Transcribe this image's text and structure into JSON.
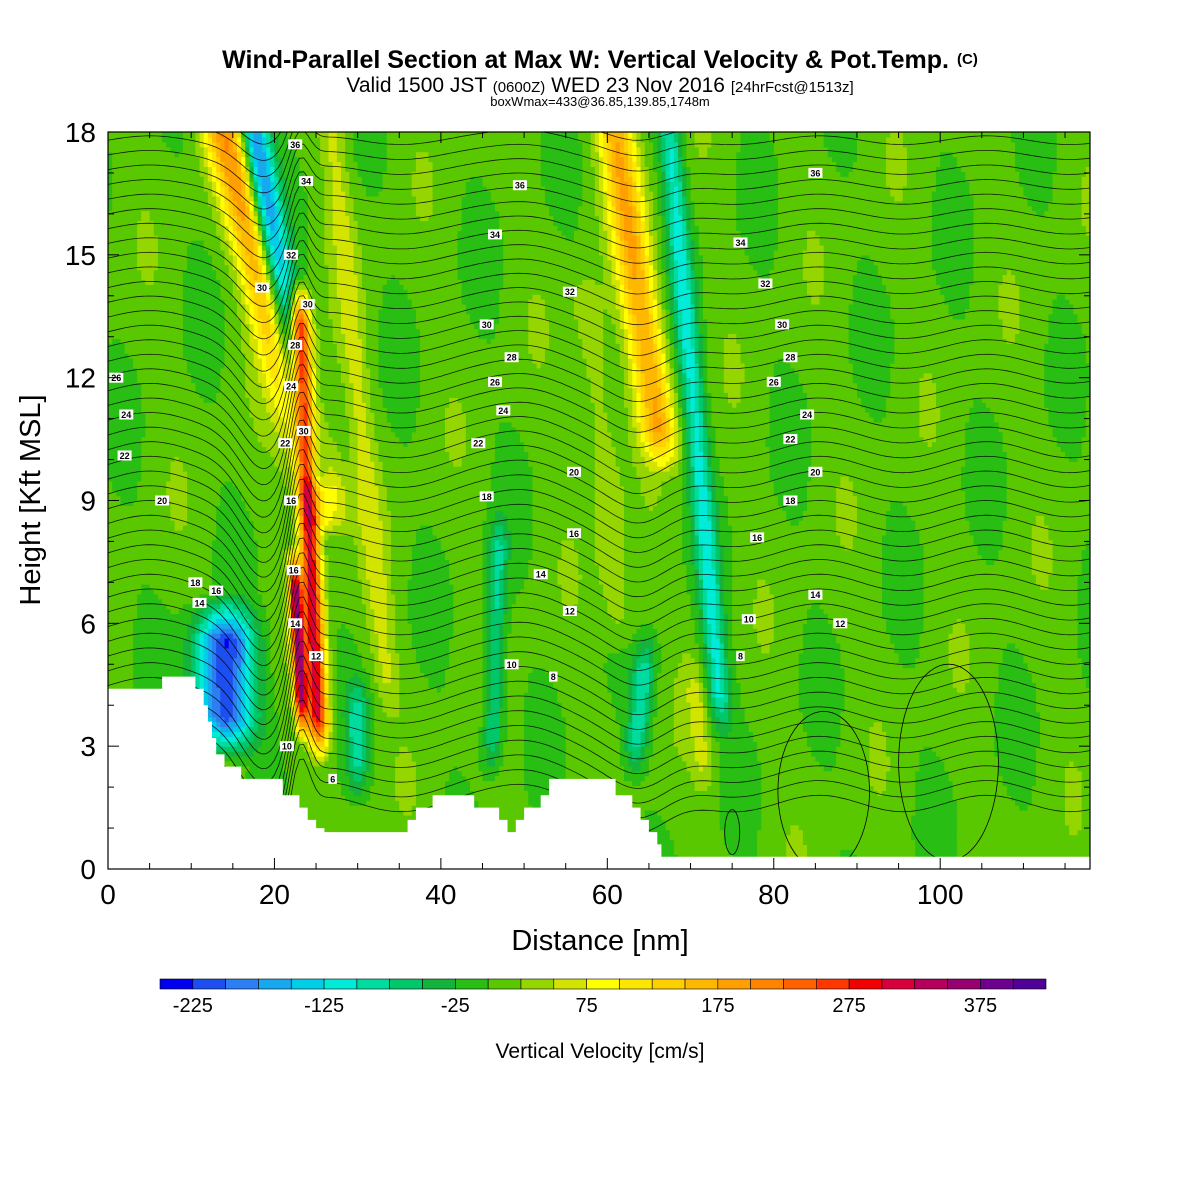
{
  "header": {
    "title_main": "Wind-Parallel Section at Max W: Vertical Velocity & Pot.Temp.",
    "title_mark": "(C)",
    "valid_a": "Valid 1500 JST ",
    "valid_b": "(0600Z)",
    "valid_c": " WED 23 Nov 2016 ",
    "valid_d": "[24hrFcst@1513z]",
    "box_info": "boxWmax=433@36.85,139.85,1748m"
  },
  "chart_data": {
    "type": "heatmap",
    "title": "Wind-Parallel Section at Max W: Vertical Velocity & Pot.Temp.",
    "xlabel": "Distance [nm]",
    "ylabel": "Height [Kft MSL]",
    "xlim": [
      0,
      118
    ],
    "ylim": [
      0,
      18
    ],
    "x_ticks": [
      0,
      20,
      40,
      60,
      80,
      100
    ],
    "y_ticks": [
      0,
      3,
      6,
      9,
      12,
      15,
      18
    ],
    "colorbar": {
      "label": "Vertical Velocity [cm/s]",
      "ticks": [
        -225,
        -125,
        -25,
        75,
        175,
        275,
        375
      ],
      "min": -250,
      "step": 25,
      "colors": [
        "#0000ee",
        "#1c4ef0",
        "#2c7ef2",
        "#18a8ee",
        "#00cde8",
        "#00ecd8",
        "#00dca0",
        "#00c86a",
        "#14b43c",
        "#28be14",
        "#5ac800",
        "#96d600",
        "#d2e400",
        "#ffff00",
        "#ffe600",
        "#ffd000",
        "#ffb800",
        "#ffa000",
        "#ff8400",
        "#ff6200",
        "#ff3800",
        "#f00000",
        "#d8003c",
        "#b4005a",
        "#960070",
        "#6e0090",
        "#500096"
      ]
    },
    "terrain_kft": [
      [
        0,
        4.4
      ],
      [
        6.5,
        4.4
      ],
      [
        6.5,
        4.7
      ],
      [
        10.5,
        4.7
      ],
      [
        10.5,
        4.4
      ],
      [
        11.5,
        4.4
      ],
      [
        11.5,
        4.0
      ],
      [
        12,
        4.0
      ],
      [
        12,
        3.6
      ],
      [
        12.5,
        3.6
      ],
      [
        12.5,
        3.2
      ],
      [
        13,
        3.2
      ],
      [
        13,
        2.8
      ],
      [
        14,
        2.8
      ],
      [
        14,
        2.5
      ],
      [
        16,
        2.5
      ],
      [
        16,
        2.2
      ],
      [
        21,
        2.2
      ],
      [
        21,
        1.8
      ],
      [
        23,
        1.8
      ],
      [
        23,
        1.5
      ],
      [
        24,
        1.5
      ],
      [
        24,
        1.2
      ],
      [
        25,
        1.2
      ],
      [
        25,
        1.0
      ],
      [
        26,
        1.0
      ],
      [
        26,
        0.9
      ],
      [
        36,
        0.9
      ],
      [
        36,
        1.2
      ],
      [
        37,
        1.2
      ],
      [
        37,
        1.5
      ],
      [
        39,
        1.5
      ],
      [
        39,
        1.8
      ],
      [
        44,
        1.8
      ],
      [
        44,
        1.5
      ],
      [
        47,
        1.5
      ],
      [
        47,
        1.2
      ],
      [
        48,
        1.2
      ],
      [
        48,
        0.9
      ],
      [
        49,
        0.9
      ],
      [
        49,
        1.2
      ],
      [
        50,
        1.2
      ],
      [
        50,
        1.5
      ],
      [
        52,
        1.5
      ],
      [
        52,
        1.8
      ],
      [
        53,
        1.8
      ],
      [
        53,
        2.2
      ],
      [
        61,
        2.2
      ],
      [
        61,
        1.8
      ],
      [
        63,
        1.8
      ],
      [
        63,
        1.5
      ],
      [
        64,
        1.5
      ],
      [
        64,
        1.2
      ],
      [
        65,
        1.2
      ],
      [
        65,
        0.9
      ],
      [
        66,
        0.9
      ],
      [
        66,
        0.6
      ],
      [
        66.5,
        0.6
      ],
      [
        66.5,
        0.3
      ],
      [
        118,
        0.3
      ]
    ],
    "updrafts": [
      {
        "x0": 14.0,
        "x1": 27.0,
        "amp": 180,
        "width": 2.6,
        "yTop": 18,
        "yBot": 8.0
      },
      {
        "x0": 22.8,
        "x1": 25.5,
        "amp": 300,
        "width": 1.2,
        "yTop": 14.5,
        "yBot": 2.5
      },
      {
        "x0": 22.2,
        "x1": 23.5,
        "amp": 330,
        "width": 0.8,
        "yTop": 8.0,
        "yBot": 3.0
      },
      {
        "x0": 61.0,
        "x1": 67.0,
        "amp": 160,
        "width": 2.2,
        "yTop": 18,
        "yBot": 9.5
      },
      {
        "x0": 27.0,
        "x1": 34.0,
        "amp": 45,
        "width": 1.5,
        "yTop": 18,
        "yBot": 3.5
      },
      {
        "x0": 57.0,
        "x1": 62.0,
        "amp": 40,
        "width": 2.0,
        "yTop": 15,
        "yBot": 5.0
      },
      {
        "x0": 70.0,
        "x1": 72.0,
        "amp": 45,
        "width": 1.2,
        "yTop": 5.5,
        "yBot": 1.5
      }
    ],
    "downdrafts": [
      {
        "x0": 17.5,
        "x1": 25.5,
        "amp": -210,
        "width": 1.8,
        "yTop": 18,
        "yBot": 8.5
      },
      {
        "x0": 14.0,
        "x1": 14.0,
        "amp": -230,
        "width": 3.5,
        "yTop": 6.8,
        "yBot": 2.5
      },
      {
        "x0": 67.5,
        "x1": 74.0,
        "amp": -110,
        "width": 1.4,
        "yTop": 18,
        "yBot": 3.0
      },
      {
        "x0": 47.0,
        "x1": 46.0,
        "amp": -90,
        "width": 1.2,
        "yTop": 9.0,
        "yBot": 2.0
      },
      {
        "x0": 30.0,
        "x1": 30.0,
        "amp": -90,
        "width": 1.3,
        "yTop": 5.0,
        "yBot": 1.5
      },
      {
        "x0": 65.0,
        "x1": 63.0,
        "amp": -95,
        "width": 1.3,
        "yTop": 6.0,
        "yBot": 2.0
      }
    ],
    "theta_labels": [
      {
        "text": "36",
        "x": 22.5,
        "y": 17.7
      },
      {
        "text": "34",
        "x": 23.8,
        "y": 16.8
      },
      {
        "text": "32",
        "x": 22.0,
        "y": 15.0
      },
      {
        "text": "30",
        "x": 18.5,
        "y": 14.2
      },
      {
        "text": "30",
        "x": 24.0,
        "y": 13.8
      },
      {
        "text": "28",
        "x": 22.5,
        "y": 12.8
      },
      {
        "text": "24",
        "x": 22.0,
        "y": 11.8
      },
      {
        "text": "30",
        "x": 23.5,
        "y": 10.7
      },
      {
        "text": "22",
        "x": 21.3,
        "y": 10.4
      },
      {
        "text": "16",
        "x": 22.0,
        "y": 9.0
      },
      {
        "text": "16",
        "x": 22.3,
        "y": 7.3
      },
      {
        "text": "14",
        "x": 22.5,
        "y": 6.0
      },
      {
        "text": "12",
        "x": 25.0,
        "y": 5.2
      },
      {
        "text": "10",
        "x": 21.5,
        "y": 3.0
      },
      {
        "text": "6",
        "x": 27.0,
        "y": 2.2
      },
      {
        "text": "26",
        "x": 1.0,
        "y": 12.0
      },
      {
        "text": "24",
        "x": 2.2,
        "y": 11.1
      },
      {
        "text": "22",
        "x": 2.0,
        "y": 10.1
      },
      {
        "text": "20",
        "x": 6.5,
        "y": 9.0
      },
      {
        "text": "18",
        "x": 10.5,
        "y": 7.0
      },
      {
        "text": "16",
        "x": 13.0,
        "y": 6.8
      },
      {
        "text": "14",
        "x": 11.0,
        "y": 6.5
      },
      {
        "text": "36",
        "x": 49.5,
        "y": 16.7
      },
      {
        "text": "34",
        "x": 46.5,
        "y": 15.5
      },
      {
        "text": "32",
        "x": 55.5,
        "y": 14.1
      },
      {
        "text": "30",
        "x": 45.5,
        "y": 13.3
      },
      {
        "text": "28",
        "x": 48.5,
        "y": 12.5
      },
      {
        "text": "26",
        "x": 46.5,
        "y": 11.9
      },
      {
        "text": "24",
        "x": 47.5,
        "y": 11.2
      },
      {
        "text": "22",
        "x": 44.5,
        "y": 10.4
      },
      {
        "text": "20",
        "x": 56.0,
        "y": 9.7
      },
      {
        "text": "18",
        "x": 45.5,
        "y": 9.1
      },
      {
        "text": "16",
        "x": 56.0,
        "y": 8.2
      },
      {
        "text": "14",
        "x": 52.0,
        "y": 7.2
      },
      {
        "text": "12",
        "x": 55.5,
        "y": 6.3
      },
      {
        "text": "10",
        "x": 48.5,
        "y": 5.0
      },
      {
        "text": "8",
        "x": 53.5,
        "y": 4.7
      },
      {
        "text": "36",
        "x": 85.0,
        "y": 17.0
      },
      {
        "text": "34",
        "x": 76.0,
        "y": 15.3
      },
      {
        "text": "32",
        "x": 79.0,
        "y": 14.3
      },
      {
        "text": "30",
        "x": 81.0,
        "y": 13.3
      },
      {
        "text": "28",
        "x": 82.0,
        "y": 12.5
      },
      {
        "text": "26",
        "x": 80.0,
        "y": 11.9
      },
      {
        "text": "24",
        "x": 84.0,
        "y": 11.1
      },
      {
        "text": "22",
        "x": 82.0,
        "y": 10.5
      },
      {
        "text": "20",
        "x": 85.0,
        "y": 9.7
      },
      {
        "text": "18",
        "x": 82.0,
        "y": 9.0
      },
      {
        "text": "16",
        "x": 78.0,
        "y": 8.1
      },
      {
        "text": "14",
        "x": 85.0,
        "y": 6.7
      },
      {
        "text": "12",
        "x": 88.0,
        "y": 6.0
      },
      {
        "text": "10",
        "x": 77.0,
        "y": 6.1
      },
      {
        "text": "8",
        "x": 76.0,
        "y": 5.2
      }
    ]
  }
}
